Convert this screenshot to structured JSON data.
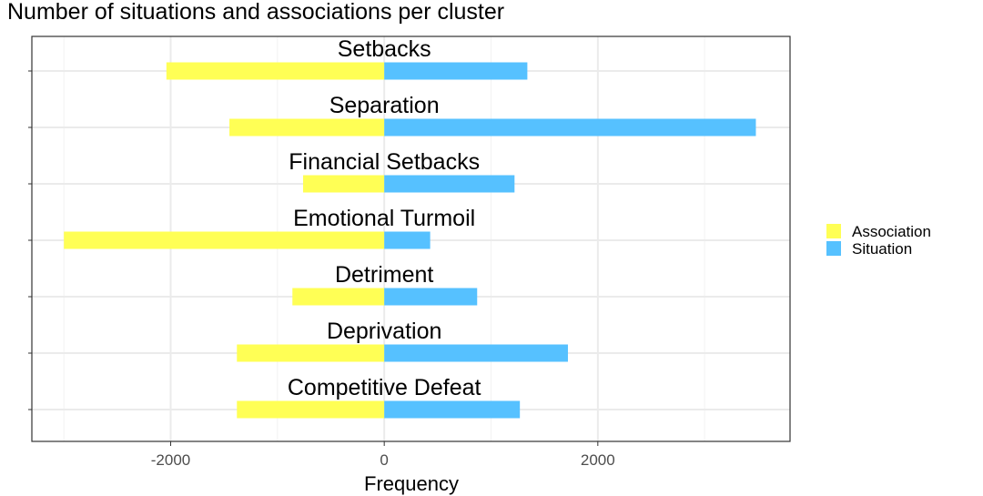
{
  "chart_data": {
    "type": "bar",
    "orientation": "horizontal",
    "title": "Number of situations and associations per cluster",
    "xlabel": "Frequency",
    "ylabel": "",
    "xlim": [
      -3300,
      3800
    ],
    "x_ticks": [
      -2000,
      0,
      2000
    ],
    "x_tick_labels": [
      "-2000",
      "0",
      "2000"
    ],
    "categories": [
      "Setbacks",
      "Separation",
      "Financial Setbacks",
      "Emotional Turmoil",
      "Detriment",
      "Deprivation",
      "Competitive Defeat"
    ],
    "series": [
      {
        "name": "Association",
        "color": "#ffff55",
        "values": [
          -2040,
          -1450,
          -760,
          -3000,
          -860,
          -1380,
          -1380
        ]
      },
      {
        "name": "Situation",
        "color": "#56c1ff",
        "values": [
          1340,
          3480,
          1220,
          430,
          870,
          1720,
          1270
        ]
      }
    ],
    "grid": true,
    "legend_position": "right"
  }
}
